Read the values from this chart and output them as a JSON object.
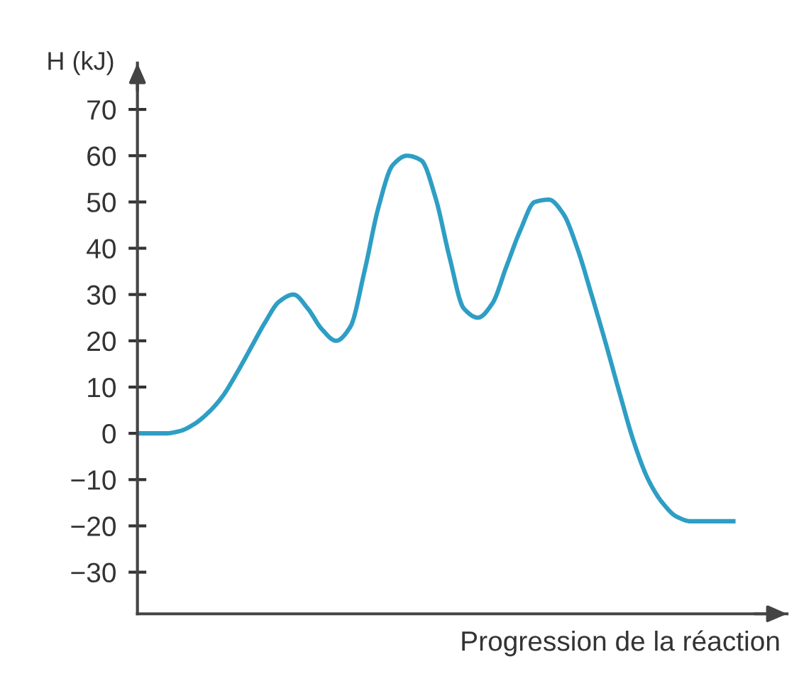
{
  "chart_data": {
    "type": "line",
    "ylabel": "H (kJ)",
    "xlabel": "Progression de la réaction",
    "categories": [
      null,
      null,
      null,
      null,
      null,
      null,
      null,
      null,
      null,
      null,
      null,
      null,
      null,
      null,
      null,
      null,
      null,
      null,
      null,
      null,
      null,
      null,
      null,
      null,
      null,
      null,
      null,
      null,
      null,
      null,
      null,
      null,
      null,
      null,
      null,
      null,
      null,
      null,
      null,
      null,
      null,
      null,
      null
    ],
    "series": [
      {
        "color": "#2e9ec4",
        "values": [
          0,
          0,
          0,
          0.5,
          2,
          4.5,
          8,
          13,
          18.5,
          24,
          28.5,
          30,
          27,
          22.5,
          20,
          23,
          35,
          49,
          58,
          60,
          59,
          51,
          38,
          27,
          25,
          28,
          36,
          44,
          50,
          50.5,
          47.5,
          40,
          30,
          19.5,
          8.5,
          -2,
          -10,
          -15,
          -18,
          -19,
          -19,
          -19,
          -19
        ]
      }
    ],
    "ylim": [
      -39,
      80
    ],
    "yticks": [
      {
        "value": -30,
        "label": "−30"
      },
      {
        "value": -20,
        "label": "−20"
      },
      {
        "value": -10,
        "label": "−10"
      },
      0,
      10,
      20,
      30,
      40,
      50,
      60,
      70
    ],
    "grid": false,
    "marker": "none",
    "line_style": "solid"
  }
}
